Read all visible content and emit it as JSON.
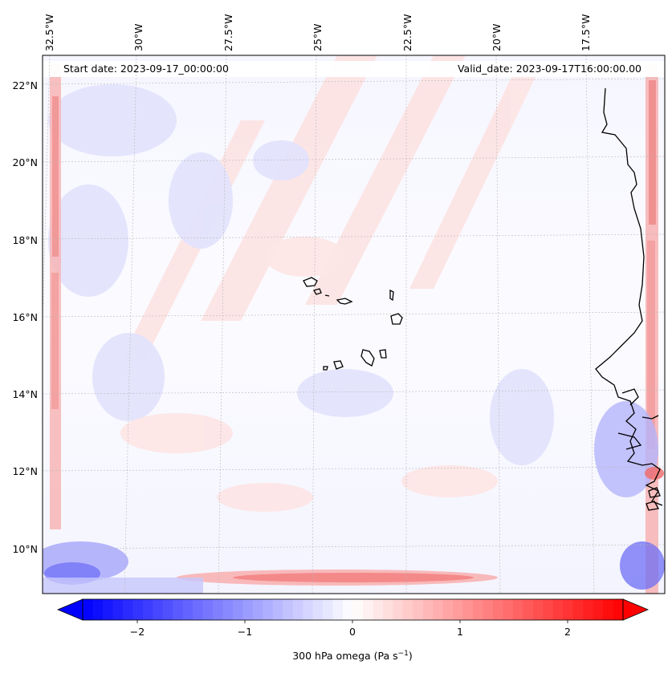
{
  "header": {
    "start_date": "Start date: 2023-09-17_00:00:00",
    "valid_date": "Valid_date: 2023-09-17T16:00:00.00"
  },
  "axes": {
    "lon_ticks": [
      "32.5°W",
      "30°W",
      "27.5°W",
      "25°W",
      "22.5°W",
      "20°W",
      "17.5°W"
    ],
    "lat_ticks": [
      "22°N",
      "20°N",
      "18°N",
      "16°N",
      "14°N",
      "12°N",
      "10°N"
    ]
  },
  "colorbar": {
    "ticks": [
      "−2",
      "−1",
      "0",
      "1",
      "2"
    ],
    "label_main": "300 hPa omega (Pa s",
    "label_sup": "−1",
    "label_end": ")",
    "min": -2.7,
    "max": 2.7,
    "cmap": "bwr",
    "extend": "both"
  },
  "colors": {
    "negative": "#0000ff",
    "neutral": "#ffffff",
    "positive": "#ff0000",
    "coastline": "#000000",
    "gridline": "#b0b0b0"
  }
}
